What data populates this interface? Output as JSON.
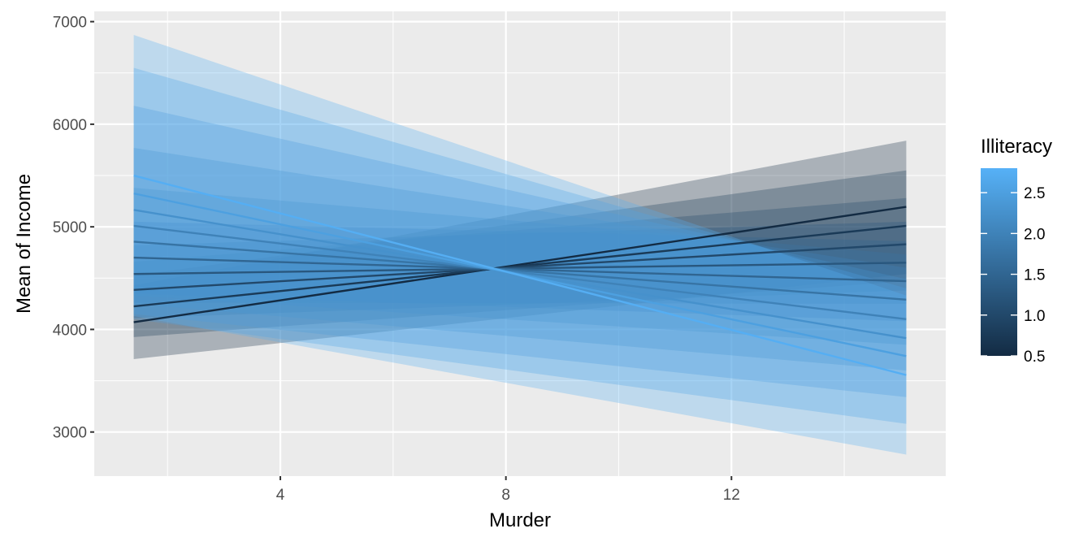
{
  "chart_data": {
    "type": "line",
    "xlabel": "Murder",
    "ylabel": "Mean of Income",
    "xlim": [
      0.7,
      15.8
    ],
    "ylim": [
      2570,
      7100
    ],
    "x_ticks": [
      4,
      8,
      12
    ],
    "y_ticks": [
      3000,
      4000,
      5000,
      6000,
      7000
    ],
    "x_range": [
      1.4,
      15.1
    ],
    "grid": true,
    "panel_background": "#ebebeb",
    "legend": {
      "title": "Illiteracy",
      "position": "right",
      "type": "colorbar",
      "range": [
        0.5,
        2.8
      ],
      "breaks": [
        2.5,
        2.0,
        1.5,
        1.0,
        0.5
      ],
      "labels": [
        "2.5",
        "2.0",
        "1.5",
        "1.0",
        "0.5"
      ],
      "low_color": "#132b43",
      "high_color": "#56b1f7"
    },
    "series": [
      {
        "illiteracy": 0.5,
        "x": [
          1.4,
          15.1
        ],
        "y": [
          4070,
          5195
        ],
        "lower": [
          3710,
          4540
        ],
        "upper": [
          4430,
          5840
        ]
      },
      {
        "illiteracy": 0.75,
        "x": [
          1.4,
          15.1
        ],
        "y": [
          4225,
          5010
        ],
        "lower": [
          3925,
          4470
        ],
        "upper": [
          4525,
          5550
        ]
      },
      {
        "illiteracy": 1.0,
        "x": [
          1.4,
          15.1
        ],
        "y": [
          4385,
          4830
        ],
        "lower": [
          4110,
          4380
        ],
        "upper": [
          4660,
          5280
        ]
      },
      {
        "illiteracy": 1.25,
        "x": [
          1.4,
          15.1
        ],
        "y": [
          4540,
          4650
        ],
        "lower": [
          4260,
          4250
        ],
        "upper": [
          4820,
          5050
        ]
      },
      {
        "illiteracy": 1.5,
        "x": [
          1.4,
          15.1
        ],
        "y": [
          4700,
          4470
        ],
        "lower": [
          4350,
          4080
        ],
        "upper": [
          5050,
          4860
        ]
      },
      {
        "illiteracy": 1.75,
        "x": [
          1.4,
          15.1
        ],
        "y": [
          4855,
          4290
        ],
        "lower": [
          4330,
          3850
        ],
        "upper": [
          5380,
          4730
        ]
      },
      {
        "illiteracy": 2.0,
        "x": [
          1.4,
          15.1
        ],
        "y": [
          5010,
          4100
        ],
        "lower": [
          4250,
          3600
        ],
        "upper": [
          5770,
          4600
        ]
      },
      {
        "illiteracy": 2.25,
        "x": [
          1.4,
          15.1
        ],
        "y": [
          5165,
          3915
        ],
        "lower": [
          4150,
          3340
        ],
        "upper": [
          6180,
          4490
        ]
      },
      {
        "illiteracy": 2.5,
        "x": [
          1.4,
          15.1
        ],
        "y": [
          5325,
          3740
        ],
        "lower": [
          4100,
          3080
        ],
        "upper": [
          6550,
          4400
        ]
      },
      {
        "illiteracy": 2.75,
        "x": [
          1.4,
          15.1
        ],
        "y": [
          5500,
          3555
        ],
        "lower": [
          4130,
          2780
        ],
        "upper": [
          6870,
          4330
        ]
      }
    ]
  }
}
